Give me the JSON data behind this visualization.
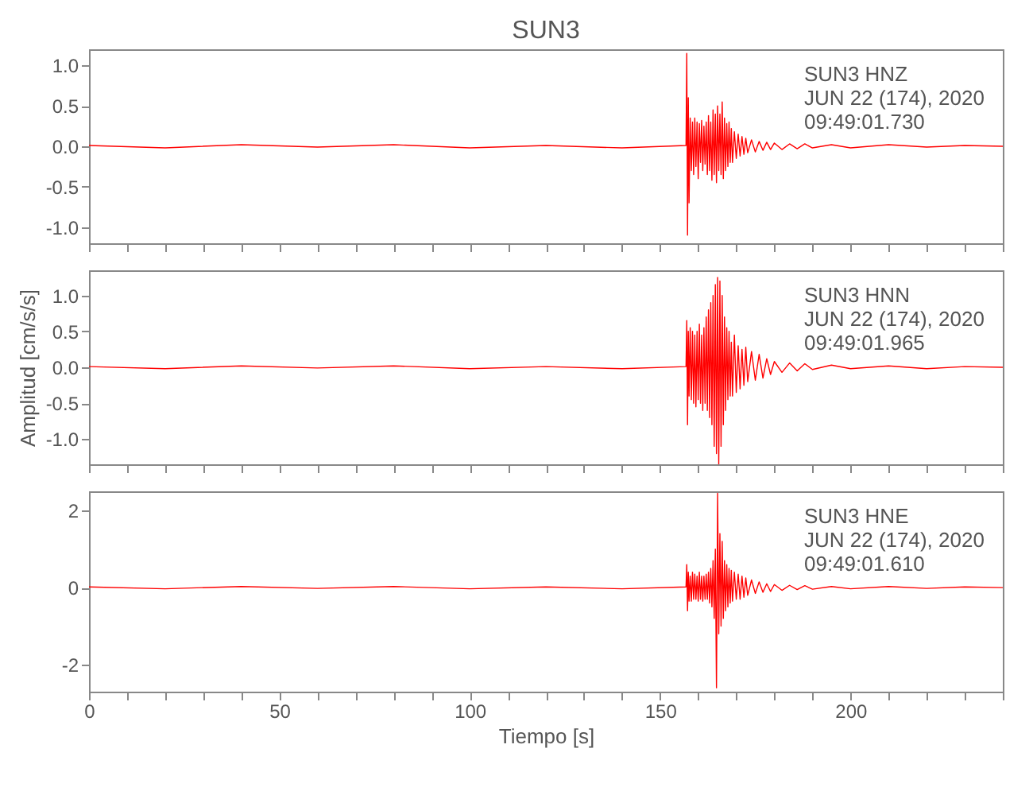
{
  "chart_data": [
    {
      "type": "line",
      "title": "SUN3",
      "tick_labels": "y",
      "grid": false,
      "marker": "none",
      "line_style": "solid",
      "annotations": [
        "SUN3   HNZ",
        "JUN 22 (174), 2020",
        "09:49:01.730"
      ],
      "xlim": [
        0,
        240
      ],
      "xticks": [
        0,
        {
          "value": 10,
          "label": null
        },
        {
          "value": 20,
          "label": null
        },
        {
          "value": 30,
          "label": null
        },
        {
          "value": 40,
          "label": null
        },
        {
          "value": 50,
          "label": null
        },
        {
          "value": 60,
          "label": null
        },
        {
          "value": 70,
          "label": null
        },
        {
          "value": 80,
          "label": null
        },
        {
          "value": 90,
          "label": null
        },
        {
          "value": 100,
          "label": null
        },
        {
          "value": 110,
          "label": null
        },
        {
          "value": 120,
          "label": null
        },
        {
          "value": 130,
          "label": null
        },
        {
          "value": 140,
          "label": null
        },
        {
          "value": 150,
          "label": null
        },
        {
          "value": 160,
          "label": null
        },
        {
          "value": 170,
          "label": null
        },
        {
          "value": 180,
          "label": null
        },
        {
          "value": 190,
          "label": null
        },
        {
          "value": 200,
          "label": null
        },
        {
          "value": 210,
          "label": null
        },
        {
          "value": 220,
          "label": null
        },
        {
          "value": 230,
          "label": null
        },
        {
          "value": 240,
          "label": null
        }
      ],
      "ylim": [
        -1.2,
        1.2
      ],
      "yticks": [
        {
          "value": -1,
          "label": "-1.0"
        },
        -0.5,
        {
          "value": 0,
          "label": "0.0"
        },
        0.5,
        {
          "value": 1,
          "label": "1.0"
        }
      ],
      "x": [
        0,
        20,
        40,
        60,
        80,
        100,
        120,
        140,
        156.8,
        157.0,
        157.2,
        157.4,
        157.6,
        157.9,
        158.2,
        158.5,
        158.8,
        159.1,
        159.4,
        159.7,
        160,
        160.3,
        160.6,
        160.9,
        161.2,
        161.5,
        161.8,
        162.1,
        162.4,
        162.7,
        163,
        163.3,
        163.6,
        163.9,
        164.2,
        164.5,
        164.8,
        165.1,
        165.4,
        165.7,
        166,
        166.3,
        166.6,
        166.9,
        167.2,
        167.5,
        167.8,
        168.1,
        168.4,
        168.7,
        169,
        169.5,
        170,
        170.5,
        171,
        171.5,
        172,
        172.5,
        173,
        174,
        175,
        176,
        177,
        178,
        179,
        180,
        182,
        184,
        186,
        188,
        190,
        195,
        200,
        210,
        220,
        230,
        240
      ],
      "series": [
        {
          "color": "#ff0000",
          "values": [
            0.01,
            -0.02,
            0.02,
            -0.01,
            0.02,
            -0.02,
            0.01,
            -0.02,
            0.01,
            1.15,
            -1.1,
            0.6,
            -0.7,
            0.35,
            -0.3,
            0.3,
            -0.35,
            0.35,
            -0.25,
            0.3,
            -0.4,
            0.28,
            -0.2,
            0.32,
            -0.3,
            0.25,
            -0.22,
            0.3,
            -0.35,
            0.38,
            -0.3,
            0.3,
            -0.42,
            0.45,
            -0.35,
            0.4,
            -0.45,
            0.5,
            -0.3,
            0.4,
            -0.35,
            0.55,
            -0.4,
            0.35,
            -0.3,
            0.28,
            -0.25,
            0.3,
            -0.2,
            0.22,
            -0.2,
            0.18,
            -0.15,
            0.15,
            -0.12,
            0.12,
            -0.1,
            0.1,
            -0.08,
            0.08,
            -0.07,
            0.06,
            -0.05,
            0.05,
            -0.04,
            0.04,
            -0.04,
            0.03,
            -0.03,
            0.03,
            -0.02,
            0.02,
            -0.02,
            0.02,
            -0.01,
            0.01,
            0.0
          ]
        }
      ]
    },
    {
      "type": "line",
      "ylabel": "Amplitud [cm/s/s]",
      "tick_labels": "y",
      "grid": false,
      "marker": "none",
      "line_style": "solid",
      "annotations": [
        "SUN3   HNN",
        "JUN 22 (174), 2020",
        "09:49:01.965"
      ],
      "xlim": [
        0,
        240
      ],
      "xticks": [
        0,
        {
          "value": 10,
          "label": null
        },
        {
          "value": 20,
          "label": null
        },
        {
          "value": 30,
          "label": null
        },
        {
          "value": 40,
          "label": null
        },
        {
          "value": 50,
          "label": null
        },
        {
          "value": 60,
          "label": null
        },
        {
          "value": 70,
          "label": null
        },
        {
          "value": 80,
          "label": null
        },
        {
          "value": 90,
          "label": null
        },
        {
          "value": 100,
          "label": null
        },
        {
          "value": 110,
          "label": null
        },
        {
          "value": 120,
          "label": null
        },
        {
          "value": 130,
          "label": null
        },
        {
          "value": 140,
          "label": null
        },
        {
          "value": 150,
          "label": null
        },
        {
          "value": 160,
          "label": null
        },
        {
          "value": 170,
          "label": null
        },
        {
          "value": 180,
          "label": null
        },
        {
          "value": 190,
          "label": null
        },
        {
          "value": 200,
          "label": null
        },
        {
          "value": 210,
          "label": null
        },
        {
          "value": 220,
          "label": null
        },
        {
          "value": 230,
          "label": null
        },
        {
          "value": 240,
          "label": null
        }
      ],
      "ylim": [
        -1.35,
        1.35
      ],
      "yticks": [
        {
          "value": -1,
          "label": "-1.0"
        },
        -0.5,
        {
          "value": 0,
          "label": "0.0"
        },
        0.5,
        {
          "value": 1,
          "label": "1.0"
        }
      ],
      "x": [
        0,
        20,
        40,
        60,
        80,
        100,
        120,
        140,
        156.8,
        157.0,
        157.2,
        157.4,
        157.6,
        157.9,
        158.2,
        158.5,
        158.8,
        159.1,
        159.4,
        159.7,
        160,
        160.3,
        160.6,
        160.9,
        161.2,
        161.5,
        161.8,
        162.1,
        162.4,
        162.7,
        163,
        163.3,
        163.6,
        163.9,
        164.2,
        164.5,
        164.8,
        165.1,
        165.4,
        165.7,
        166,
        166.3,
        166.6,
        166.9,
        167.2,
        167.5,
        167.8,
        168.1,
        168.4,
        168.7,
        169,
        169.5,
        170,
        170.5,
        171,
        171.5,
        172,
        172.5,
        173,
        174,
        175,
        176,
        177,
        178,
        179,
        180,
        182,
        184,
        186,
        188,
        190,
        195,
        200,
        210,
        220,
        230,
        240
      ],
      "series": [
        {
          "color": "#ff0000",
          "values": [
            0.01,
            -0.02,
            0.02,
            -0.01,
            0.02,
            -0.02,
            0.01,
            -0.02,
            0.01,
            0.65,
            -0.8,
            0.5,
            -0.4,
            0.55,
            -0.45,
            0.5,
            -0.5,
            0.45,
            -0.55,
            0.5,
            -0.45,
            0.6,
            -0.5,
            0.45,
            -0.6,
            0.55,
            -0.5,
            0.7,
            -0.6,
            0.8,
            -0.7,
            0.9,
            -0.8,
            1.0,
            -1.1,
            1.15,
            -1.2,
            1.25,
            -1.35,
            1.2,
            -1.1,
            1.0,
            -0.8,
            0.7,
            -0.6,
            0.55,
            -0.45,
            0.5,
            -0.4,
            0.35,
            -0.4,
            0.45,
            -0.35,
            0.3,
            -0.3,
            0.25,
            -0.25,
            0.28,
            -0.2,
            0.22,
            -0.18,
            0.18,
            -0.15,
            0.12,
            -0.1,
            0.08,
            -0.07,
            0.06,
            -0.05,
            0.05,
            -0.03,
            0.03,
            -0.02,
            0.02,
            -0.02,
            0.01,
            0.0
          ]
        }
      ]
    },
    {
      "type": "line",
      "xlabel": "Tiempo [s]",
      "grid": false,
      "marker": "none",
      "line_style": "solid",
      "annotations": [
        "SUN3   HNE",
        "JUN 22 (174), 2020",
        "09:49:01.610"
      ],
      "xlim": [
        0,
        240
      ],
      "xticks": [
        0,
        {
          "value": 10,
          "label": null
        },
        {
          "value": 20,
          "label": null
        },
        {
          "value": 30,
          "label": null
        },
        {
          "value": 40,
          "label": null
        },
        50,
        {
          "value": 60,
          "label": null
        },
        {
          "value": 70,
          "label": null
        },
        {
          "value": 80,
          "label": null
        },
        {
          "value": 90,
          "label": null
        },
        100,
        {
          "value": 110,
          "label": null
        },
        {
          "value": 120,
          "label": null
        },
        {
          "value": 130,
          "label": null
        },
        {
          "value": 140,
          "label": null
        },
        150,
        {
          "value": 160,
          "label": null
        },
        {
          "value": 170,
          "label": null
        },
        {
          "value": 180,
          "label": null
        },
        {
          "value": 190,
          "label": null
        },
        200,
        {
          "value": 210,
          "label": null
        },
        {
          "value": 220,
          "label": null
        },
        {
          "value": 230,
          "label": null
        },
        {
          "value": 240,
          "label": null
        }
      ],
      "ylim": [
        -2.7,
        2.5
      ],
      "yticks": [
        -2,
        0,
        2
      ],
      "x": [
        0,
        20,
        40,
        60,
        80,
        100,
        120,
        140,
        156.8,
        157.0,
        157.2,
        157.4,
        157.6,
        157.9,
        158.2,
        158.5,
        158.8,
        159.1,
        159.4,
        159.7,
        160,
        160.3,
        160.6,
        160.9,
        161.2,
        161.5,
        161.8,
        162.1,
        162.4,
        162.7,
        163,
        163.3,
        163.6,
        163.9,
        164.2,
        164.5,
        164.8,
        165.1,
        165.4,
        165.7,
        166,
        166.3,
        166.6,
        166.9,
        167.2,
        167.5,
        167.8,
        168.1,
        168.4,
        168.7,
        169,
        169.5,
        170,
        170.5,
        171,
        171.5,
        172,
        172.5,
        173,
        174,
        175,
        176,
        177,
        178,
        179,
        180,
        182,
        184,
        186,
        188,
        190,
        195,
        200,
        210,
        220,
        230,
        240
      ],
      "series": [
        {
          "color": "#ff0000",
          "values": [
            0.02,
            -0.03,
            0.03,
            -0.02,
            0.03,
            -0.03,
            0.02,
            -0.03,
            0.02,
            0.6,
            -0.6,
            0.4,
            -0.35,
            0.3,
            -0.35,
            0.4,
            -0.3,
            0.35,
            -0.3,
            0.3,
            -0.35,
            0.4,
            -0.3,
            0.3,
            -0.35,
            0.3,
            -0.3,
            0.35,
            -0.3,
            0.4,
            -0.4,
            0.5,
            -0.5,
            0.7,
            -0.8,
            1.0,
            -2.6,
            2.45,
            -1.2,
            1.4,
            -1.0,
            1.2,
            -0.8,
            0.7,
            -0.6,
            0.6,
            -0.5,
            0.5,
            -0.4,
            0.45,
            -0.35,
            0.4,
            -0.3,
            0.35,
            -0.3,
            0.3,
            -0.25,
            0.25,
            -0.2,
            0.2,
            -0.15,
            0.15,
            -0.12,
            0.1,
            -0.1,
            0.08,
            -0.07,
            0.06,
            -0.05,
            0.05,
            -0.04,
            0.03,
            -0.03,
            0.03,
            -0.02,
            0.02,
            0.0
          ]
        }
      ]
    }
  ]
}
